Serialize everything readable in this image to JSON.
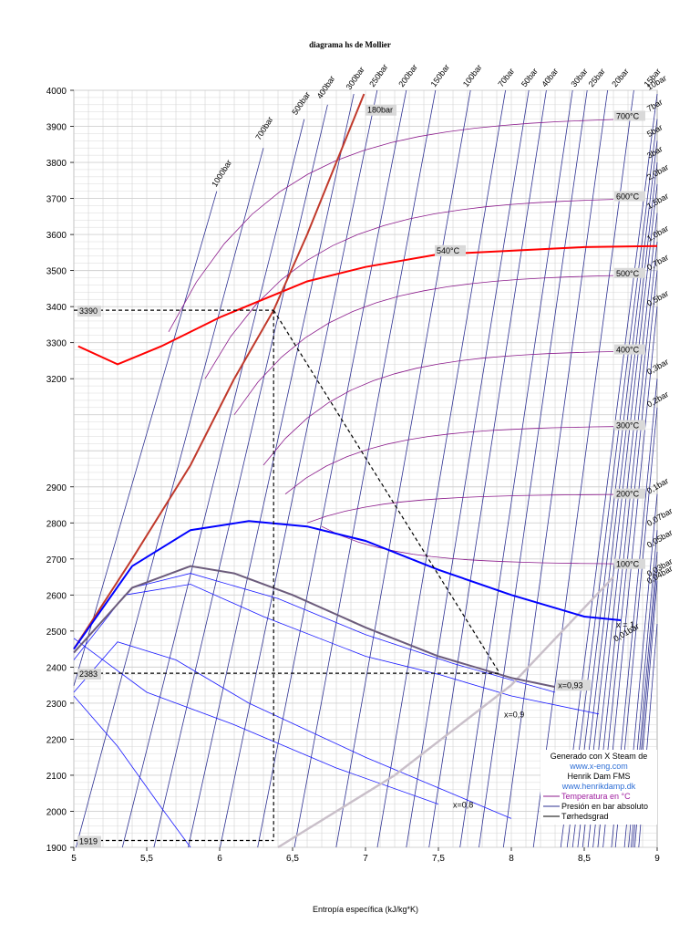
{
  "chart_data": {
    "type": "line",
    "title": "diagrama hs de Mollier",
    "xlabel": "Entropía específica (kJ/kg*K)",
    "ylabel": "",
    "xlim": [
      5,
      9
    ],
    "ylim": [
      1900,
      4000
    ],
    "x_ticks": [
      "5",
      "5,5",
      "6",
      "6,5",
      "7",
      "7,5",
      "8",
      "8,5",
      "9"
    ],
    "y_ticks": [
      "1900",
      "2000",
      "2100",
      "2200",
      "2300",
      "2400",
      "2500",
      "2600",
      "2700",
      "2800",
      "2900",
      "3200",
      "3300",
      "3400",
      "3500",
      "3600",
      "3700",
      "3800",
      "3900",
      "4000"
    ],
    "grid": true,
    "isobar_labels": [
      "1000bar",
      "700bar",
      "500bar",
      "400bar",
      "300bar",
      "250bar",
      "200bar",
      "150bar",
      "100bar",
      "70bar",
      "50bar",
      "40bar",
      "30bar",
      "25bar",
      "20bar",
      "15bar",
      "10bar",
      "7bar",
      "5bar",
      "3bar",
      "2,0bar",
      "1,5bar",
      "1,0bar",
      "0,7bar",
      "0,5bar",
      "0,3bar",
      "0,2bar",
      "0,1bar",
      "0,07bar",
      "0,05bar",
      "0,04bar",
      "0,03bar",
      "0,01bar"
    ],
    "isotherm_labels": [
      "700°C",
      "600°C",
      "500°C",
      "400°C",
      "300°C",
      "200°C",
      "100°C"
    ],
    "quality_labels": [
      "x = 1",
      "x=0,93",
      "x=0,9",
      "x=0,8"
    ],
    "series": [
      {
        "name": "540°C",
        "points": [
          [
            5.03,
            3290
          ],
          [
            5.3,
            3240
          ],
          [
            5.6,
            3290
          ],
          [
            6.0,
            3370
          ],
          [
            6.3,
            3420
          ],
          [
            6.6,
            3470
          ],
          [
            7.0,
            3510
          ],
          [
            7.5,
            3545
          ],
          [
            8.0,
            3555
          ],
          [
            8.5,
            3565
          ],
          [
            9.0,
            3568
          ]
        ]
      },
      {
        "name": "180bar",
        "points": [
          [
            5.0,
            2450
          ],
          [
            5.4,
            2700
          ],
          [
            5.8,
            2960
          ],
          [
            6.1,
            3200
          ],
          [
            6.37,
            3390
          ],
          [
            6.6,
            3600
          ],
          [
            6.8,
            3800
          ],
          [
            6.99,
            3990
          ]
        ]
      },
      {
        "name": "x = 1",
        "points": [
          [
            5.0,
            2450
          ],
          [
            5.4,
            2680
          ],
          [
            5.8,
            2780
          ],
          [
            6.2,
            2805
          ],
          [
            6.6,
            2790
          ],
          [
            7.0,
            2750
          ],
          [
            7.5,
            2670
          ],
          [
            8.0,
            2600
          ],
          [
            8.5,
            2540
          ],
          [
            8.75,
            2530
          ]
        ]
      },
      {
        "name": "x=0,93",
        "points": [
          [
            5.0,
            2440
          ],
          [
            5.4,
            2620
          ],
          [
            5.8,
            2680
          ],
          [
            6.1,
            2660
          ],
          [
            6.5,
            2600
          ],
          [
            7.0,
            2510
          ],
          [
            7.5,
            2430
          ],
          [
            8.0,
            2370
          ],
          [
            8.3,
            2345
          ]
        ]
      },
      {
        "name": "process",
        "points": [
          [
            6.37,
            3390
          ],
          [
            7.92,
            2383
          ]
        ]
      }
    ],
    "annotations": {
      "h_marks": [
        "3390",
        "2383",
        "1919"
      ],
      "state_labels": [
        "540°C",
        "180bar"
      ]
    },
    "legend": {
      "placement": "bottom-right",
      "lines": [
        "Generado con X Steam de",
        "www.x-eng.com",
        "Henrik Dam FMS",
        "www.henrikdamp.dk",
        "Temperatura en °C",
        "Presión en bar absoluto",
        "Tørhedsgrad"
      ]
    },
    "colors": {
      "isobar": "#2e3192",
      "isotherm": "#8b1a8b",
      "quality": "#1a1aff",
      "highlight": "#ff0000",
      "isobar_180": "#c0392b",
      "saturation": "#0000ff",
      "x093": "#6b5b7b",
      "process": "#000000",
      "link": "#2f6fd6",
      "legend_temp": "#a020a0"
    }
  }
}
